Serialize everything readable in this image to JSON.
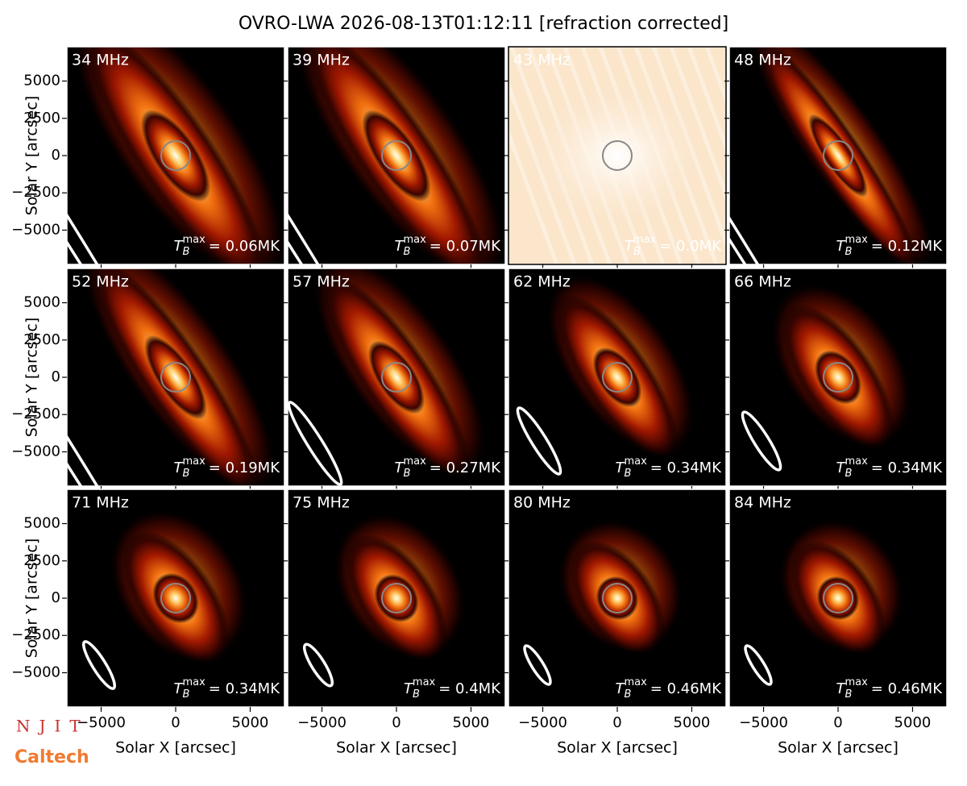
{
  "chart_data": {
    "type": "image-grid",
    "title": "OVRO-LWA 2026-08-13T01:12:11 [refraction corrected]",
    "xlabel": "Solar X [arcsec]",
    "ylabel": "Solar Y [arcsec]",
    "xlim": [
      -7300,
      7300
    ],
    "ylim": [
      -7300,
      7300
    ],
    "xticks": [
      {
        "value": -5000,
        "label": "−5000"
      },
      0,
      5000
    ],
    "yticks": [
      {
        "value": -5000,
        "label": "−5000"
      },
      {
        "value": -2500,
        "label": "−2500"
      },
      0,
      2500,
      5000
    ],
    "tb_symbol": "T",
    "tb_sub": "B",
    "tb_sup": "max",
    "panels": [
      {
        "label": "34 MHz",
        "tb_label": "= 0.06MK"
      },
      {
        "label": "39 MHz",
        "tb_label": "= 0.07MK"
      },
      {
        "label": "43 MHz",
        "tb_label": "= 0.0MK"
      },
      {
        "label": "48 MHz",
        "tb_label": "= 0.12MK"
      },
      {
        "label": "52 MHz",
        "tb_label": "= 0.19MK"
      },
      {
        "label": "57 MHz",
        "tb_label": "= 0.27MK"
      },
      {
        "label": "62 MHz",
        "tb_label": "= 0.34MK"
      },
      {
        "label": "66 MHz",
        "tb_label": "= 0.34MK"
      },
      {
        "label": "71 MHz",
        "tb_label": "= 0.34MK"
      },
      {
        "label": "75 MHz",
        "tb_label": "= 0.4MK"
      },
      {
        "label": "80 MHz",
        "tb_label": "= 0.46MK"
      },
      {
        "label": "84 MHz",
        "tb_label": "= 0.46MK"
      }
    ],
    "logos": [
      "NJIT",
      "Caltech"
    ]
  }
}
